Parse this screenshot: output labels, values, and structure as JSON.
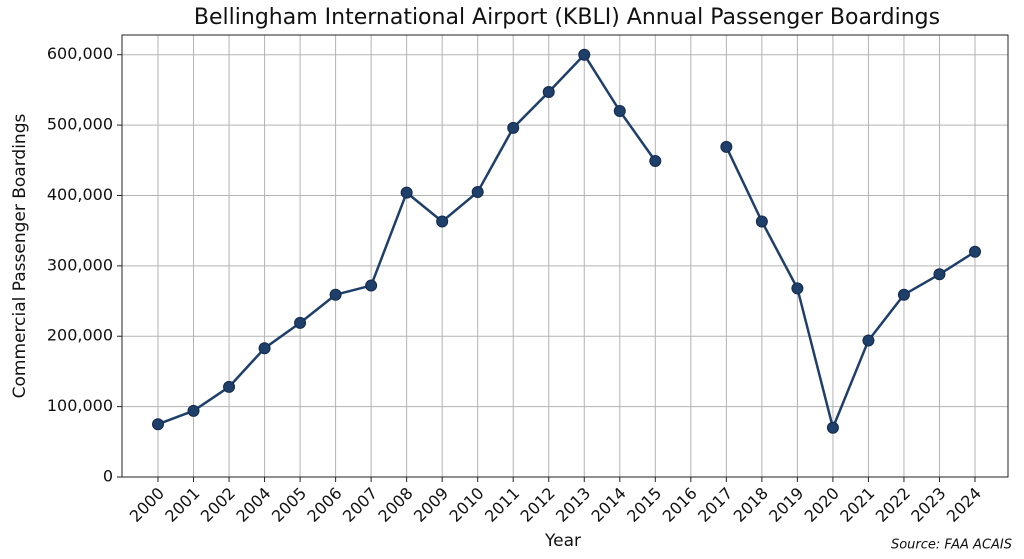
{
  "chart_data": {
    "type": "line",
    "title": "Bellingham International Airport (KBLI) Annual Passenger Boardings",
    "x_label": "Year",
    "y_label": "Commercial Passenger Boardings",
    "source": "Source: FAA ACAIS",
    "categories": [
      "2000",
      "2001",
      "2002",
      "2004",
      "2005",
      "2006",
      "2007",
      "2008",
      "2009",
      "2010",
      "2011",
      "2012",
      "2013",
      "2014",
      "2015",
      "2016",
      "2017",
      "2018",
      "2019",
      "2020",
      "2021",
      "2022",
      "2023",
      "2024"
    ],
    "series": [
      {
        "name": "Boardings",
        "color": "#1f3f6b",
        "values": [
          75000,
          94000,
          128000,
          183000,
          219000,
          259000,
          272000,
          404000,
          363000,
          405000,
          496000,
          547000,
          600000,
          520000,
          449000,
          null,
          469000,
          363000,
          268000,
          70000,
          194000,
          259000,
          288000,
          320000
        ]
      }
    ],
    "ylim": [
      0,
      628000
    ],
    "yticks": [
      0,
      {
        "value": 100000,
        "label": "100,000"
      },
      {
        "value": 200000,
        "label": "200,000"
      },
      {
        "value": 300000,
        "label": "300,000"
      },
      {
        "value": 400000,
        "label": "400,000"
      },
      {
        "value": 500000,
        "label": "500,000"
      },
      {
        "value": 600000,
        "label": "600,000"
      }
    ],
    "grid": true
  }
}
